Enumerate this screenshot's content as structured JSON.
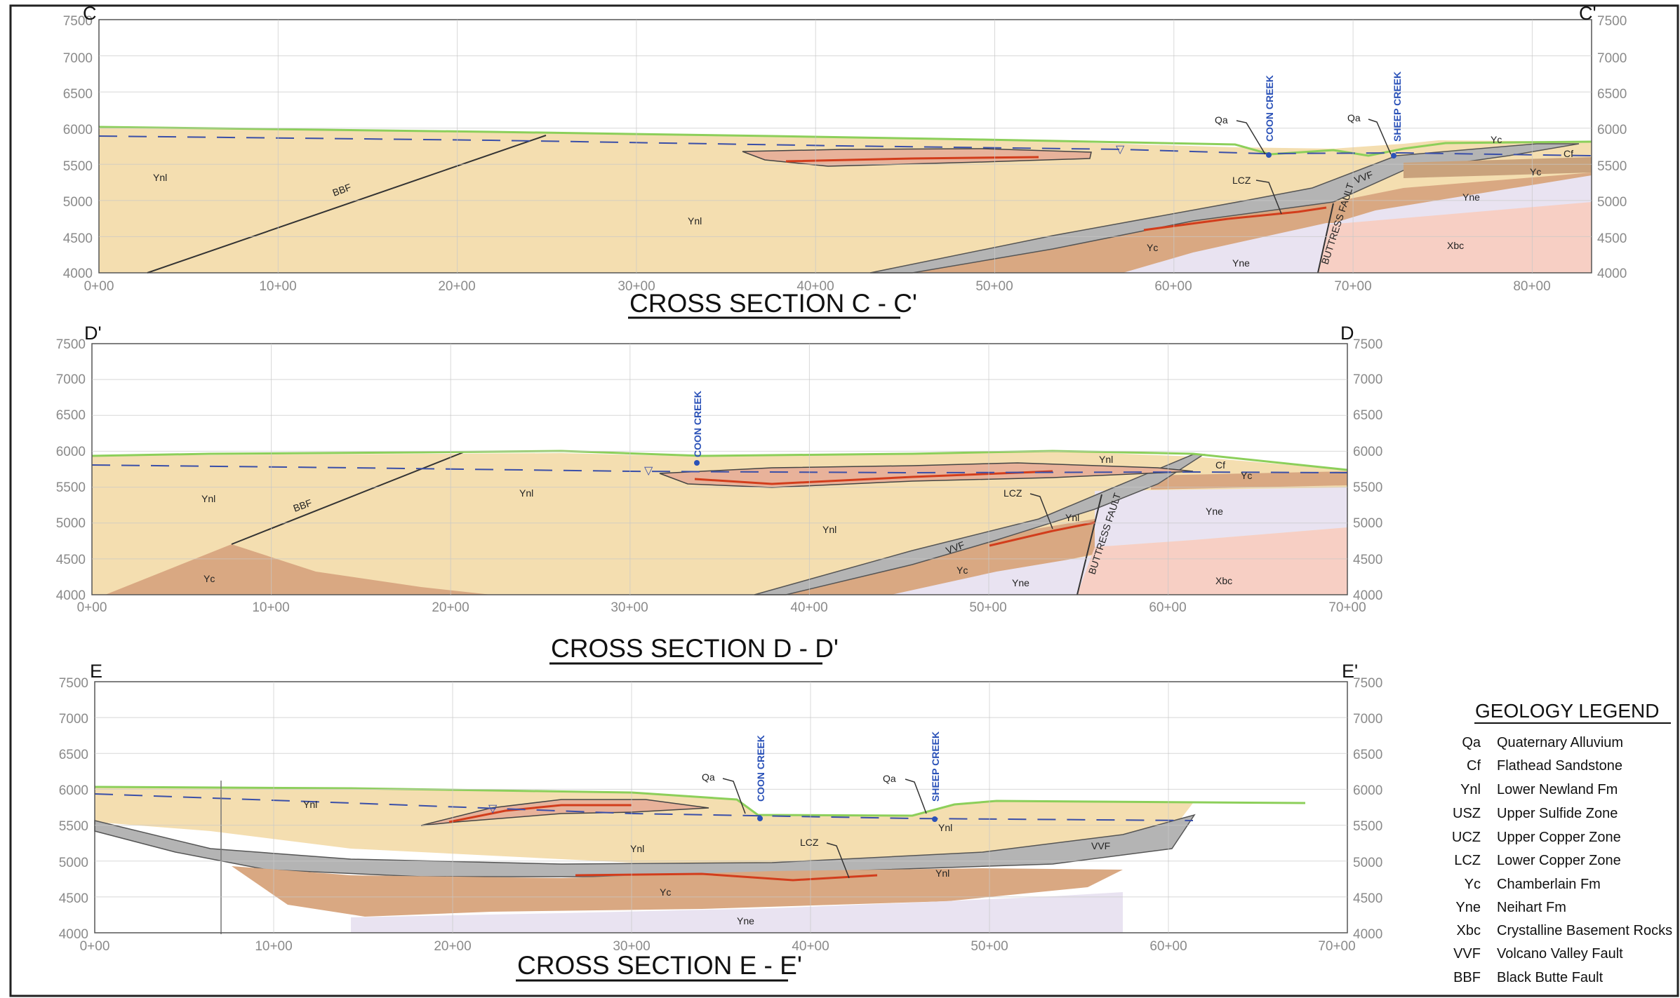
{
  "elevation_ticks": [
    "7500",
    "7000",
    "6500",
    "6000",
    "5500",
    "5000",
    "4500",
    "4000"
  ],
  "sections": [
    {
      "title": "CROSS SECTION C - C'",
      "left_label": "C",
      "right_label": "C'",
      "x_ticks": [
        "0+00",
        "10+00",
        "20+00",
        "30+00",
        "40+00",
        "50+00",
        "60+00",
        "70+00",
        "80+00"
      ],
      "units": [
        "Ynl",
        "Ynl",
        "Yc",
        "Yne",
        "Xbc",
        "Yne",
        "Yc",
        "Yc",
        "Cf",
        "Qa",
        "Qa",
        "LCZ"
      ],
      "faults": [
        "BBF",
        "VVF",
        "BUTTRESS FAULT"
      ],
      "streams": [
        "COON CREEK",
        "SHEEP CREEK"
      ]
    },
    {
      "title": "CROSS SECTION D - D'",
      "left_label": "D'",
      "right_label": "D",
      "x_ticks": [
        "0+00",
        "10+00",
        "20+00",
        "30+00",
        "40+00",
        "50+00",
        "60+00",
        "70+00"
      ],
      "units": [
        "Ynl",
        "Ynl",
        "Ynl",
        "Ynl",
        "Ynl",
        "Yc",
        "Yc",
        "Yne",
        "Yne",
        "Xbc",
        "Cf",
        "Yc",
        "LCZ"
      ],
      "faults": [
        "BBF",
        "VVF",
        "BUTTRESS FAULT"
      ],
      "streams": [
        "COON CREEK"
      ]
    },
    {
      "title": "CROSS SECTION E - E'",
      "left_label": "E",
      "right_label": "E'",
      "x_ticks": [
        "0+00",
        "10+00",
        "20+00",
        "30+00",
        "40+00",
        "50+00",
        "60+00",
        "70+00"
      ],
      "units": [
        "Ynl",
        "Ynl",
        "Ynl",
        "Ynl",
        "Yc",
        "Yne",
        "Qa",
        "Qa",
        "LCZ"
      ],
      "faults": [
        "VVF"
      ],
      "streams": [
        "COON CREEK",
        "SHEEP CREEK"
      ]
    }
  ],
  "legend": {
    "title": "GEOLOGY LEGEND",
    "items": [
      {
        "code": "Qa",
        "label": "Quaternary Alluvium"
      },
      {
        "code": "Cf",
        "label": "Flathead Sandstone"
      },
      {
        "code": "Ynl",
        "label": "Lower Newland Fm"
      },
      {
        "code": "USZ",
        "label": "Upper Sulfide Zone"
      },
      {
        "code": "UCZ",
        "label": "Upper Copper Zone"
      },
      {
        "code": "LCZ",
        "label": "Lower Copper Zone"
      },
      {
        "code": "Yc",
        "label": "Chamberlain Fm"
      },
      {
        "code": "Yne",
        "label": "Neihart Fm"
      },
      {
        "code": "Xbc",
        "label": "Crystalline Basement Rocks"
      },
      {
        "code": "VVF",
        "label": "Volcano Valley Fault"
      },
      {
        "code": "BBF",
        "label": "Black Butte Fault"
      }
    ]
  },
  "colors": {
    "ynl": "#f4deb0",
    "yc": "#d9a882",
    "yne": "#e9e3f1",
    "xbc": "#f7cfc4",
    "fault_zone": "#b4b4b4",
    "surface": "#8ccf5a",
    "water_table": "#3a4fa8",
    "stream": "#2b52b8",
    "ore": "#d23d1c",
    "grid": "#c8c8c8"
  }
}
